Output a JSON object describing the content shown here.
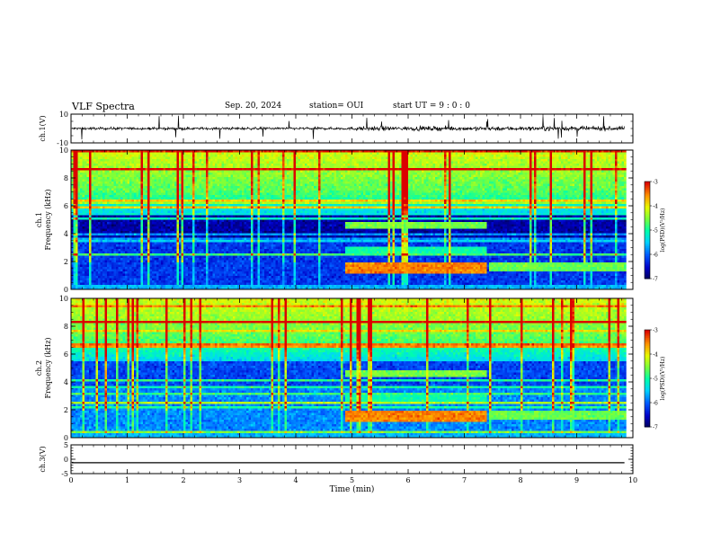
{
  "header": {
    "title": "VLF Spectra",
    "date": "Sep. 20, 2024",
    "station": "station= OUI",
    "start_ut": "start  UT =   9 : 0  : 0"
  },
  "chart_data": [
    {
      "type": "line",
      "name": "waveform-ch1",
      "ylabel": "ch.1(V)",
      "ylim": [
        -10,
        10
      ],
      "yticks": [
        10,
        -10
      ],
      "xlim": [
        0,
        10
      ],
      "x_end": 9.85,
      "description_levels": {
        "before_5min_amplitude": 1.5,
        "after_5min_amplitude": 2.5
      }
    },
    {
      "type": "heatmap",
      "name": "spectrogram-ch1",
      "ylabel": "ch.1\nFrequency  (kHz)",
      "ylim": [
        0,
        10
      ],
      "yticks": [
        0,
        2,
        4,
        6,
        8,
        10
      ],
      "xlim": [
        0,
        10
      ],
      "x_end": 9.85,
      "colorbar": {
        "label": "log(PSD)(V²/Hz)",
        "range": [
          -7,
          -3
        ],
        "ticks": [
          -3,
          -4,
          -5,
          -6,
          -7
        ]
      }
    },
    {
      "type": "heatmap",
      "name": "spectrogram-ch2",
      "ylabel": "ch.2\nFrequency  (kHz)",
      "ylim": [
        0,
        10
      ],
      "yticks": [
        0,
        2,
        4,
        6,
        8,
        10
      ],
      "xlim": [
        0,
        10
      ],
      "x_end": 9.85,
      "colorbar": {
        "label": "log(PSD)(V²/Hz)",
        "range": [
          -7,
          -3
        ],
        "ticks": [
          -3,
          -4,
          -5,
          -6,
          -7
        ]
      }
    },
    {
      "type": "line",
      "name": "waveform-ch3",
      "ylabel": "ch.3(V)",
      "ylim": [
        -5,
        5
      ],
      "yticks": [
        5,
        0,
        -5
      ],
      "xlim": [
        0,
        10
      ],
      "x_end": 9.85,
      "values_constant": -1.2
    }
  ],
  "xaxis": {
    "label": "Time  (min)",
    "ticks": [
      0,
      1,
      2,
      3,
      4,
      5,
      6,
      7,
      8,
      9,
      10
    ]
  }
}
